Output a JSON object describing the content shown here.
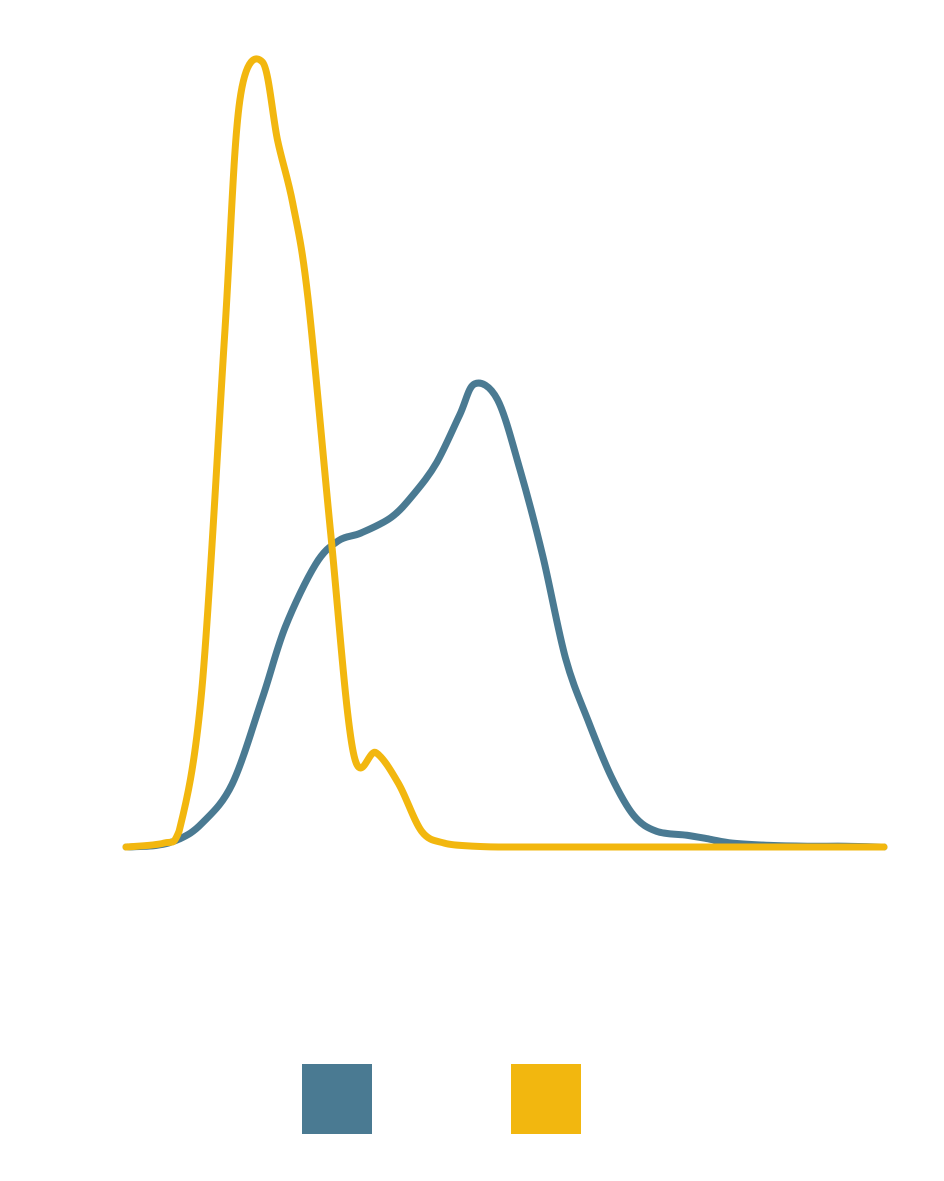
{
  "chart_data": {
    "type": "line",
    "title": "",
    "xlabel": "",
    "ylabel": "",
    "xlim": [
      0,
      100
    ],
    "ylim": [
      0,
      1
    ],
    "grid": false,
    "legend": "bottom-center",
    "series": [
      {
        "color": "#4a7a92",
        "x": [
          0,
          4,
          7,
          10,
          14,
          18,
          21,
          25,
          28,
          31,
          35,
          38,
          41,
          44,
          46,
          49,
          52,
          55,
          58,
          61,
          64,
          67,
          70,
          74,
          77,
          80,
          85,
          90,
          95,
          100
        ],
        "y": [
          0,
          0.002,
          0.01,
          0.03,
          0.08,
          0.19,
          0.28,
          0.36,
          0.39,
          0.4,
          0.42,
          0.45,
          0.49,
          0.55,
          0.59,
          0.57,
          0.48,
          0.37,
          0.24,
          0.16,
          0.09,
          0.04,
          0.02,
          0.015,
          0.01,
          0.005,
          0.002,
          0.001,
          0.001,
          0
        ]
      },
      {
        "color": "#f2b70f",
        "x": [
          0,
          5,
          7,
          10,
          13,
          15,
          18,
          20,
          22,
          24,
          27,
          30,
          33,
          36,
          39,
          42,
          46,
          50,
          60,
          70,
          80,
          90,
          100
        ],
        "y": [
          0,
          0.005,
          0.02,
          0.2,
          0.65,
          0.95,
          1.0,
          0.9,
          0.82,
          0.7,
          0.4,
          0.12,
          0.12,
          0.08,
          0.02,
          0.005,
          0.001,
          0,
          0,
          0,
          0,
          0,
          0
        ]
      }
    ]
  }
}
